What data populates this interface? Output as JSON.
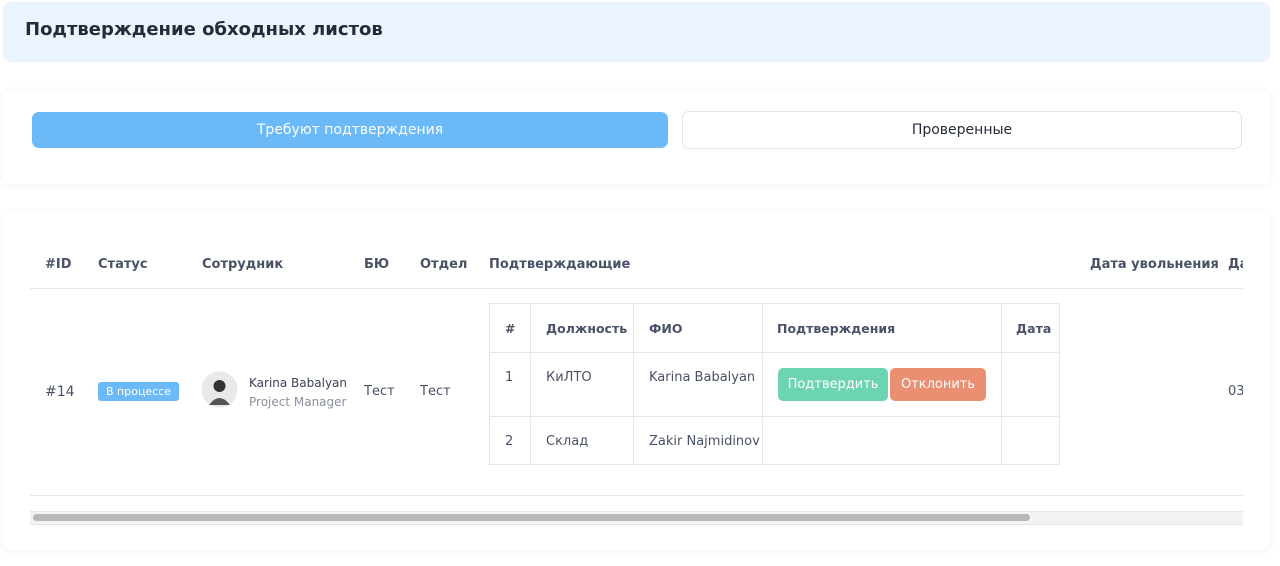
{
  "header": {
    "title": "Подтверждение обходных листов"
  },
  "tabs": [
    "Требуют подтверждения",
    "Проверенные"
  ],
  "table": {
    "headers": [
      "#ID",
      "Статус",
      "Сотрудник",
      "БЮ",
      "Отдел",
      "Подтверждающие",
      "Дата увольнения",
      "Да"
    ],
    "rows": [
      {
        "id": "#14",
        "status": "В процессе",
        "employee": {
          "name": "Karina Babalyan",
          "position": "Project Manager"
        },
        "bu": "Тест",
        "department": "Тест",
        "last": "03",
        "approvers": {
          "headers": [
            "#",
            "Должность",
            "ФИО",
            "Подтверждения",
            "Дата"
          ],
          "rows": [
            [
              "1",
              "КиЛТО",
              "Karina Babalyan"
            ],
            [
              "2",
              "Склад",
              "Zakir Najmidinov"
            ]
          ],
          "buttons": [
            "Подтвердить",
            "Отклонить"
          ]
        }
      }
    ]
  }
}
